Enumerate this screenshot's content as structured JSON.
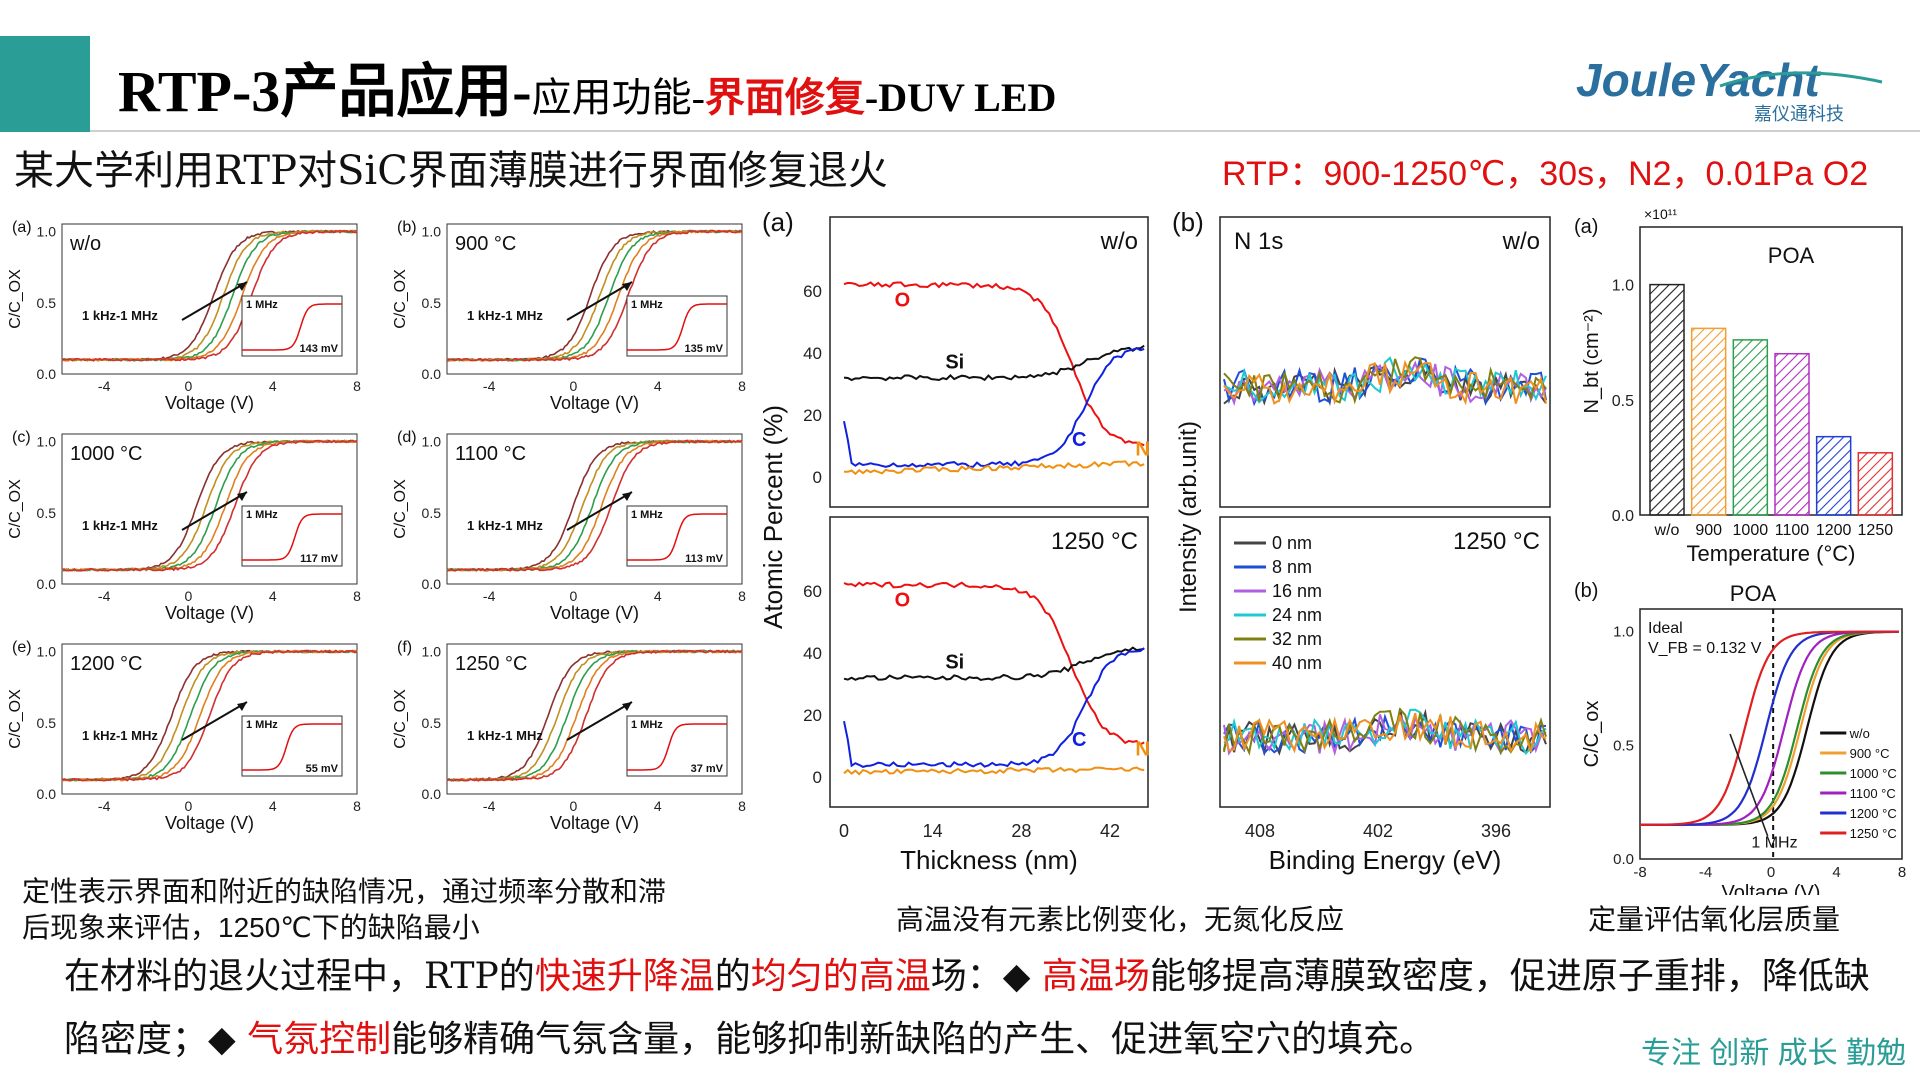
{
  "header": {
    "title_main": "RTP-3产品应用-",
    "title_sub": "应用功能-",
    "title_red": "界面修复",
    "title_tail": "-DUV LED",
    "logo_text": "JouleYacht",
    "logo_cn": "嘉仪通科技"
  },
  "subtitle": "某大学利用RTP对SiC界面薄膜进行界面修复退火",
  "rtp_condition": "RTP：900-1250℃，30s，N2，0.01Pa O2",
  "cv_panels": [
    {
      "letter": "(a)",
      "label": "w/o",
      "mv": "143 mV",
      "shift": 1.2
    },
    {
      "letter": "(b)",
      "label": "900 °C",
      "mv": "135 mV",
      "shift": 0.8
    },
    {
      "letter": "(c)",
      "label": "1000 °C",
      "mv": "117 mV",
      "shift": 0.4
    },
    {
      "letter": "(d)",
      "label": "1100 °C",
      "mv": "113 mV",
      "shift": 0.0
    },
    {
      "letter": "(e)",
      "label": "1200 °C",
      "mv": "55 mV",
      "shift": -0.8
    },
    {
      "letter": "(f)",
      "label": "1250 °C",
      "mv": "37 mV",
      "shift": -1.2
    }
  ],
  "cv_common": {
    "ylabel": "C/C_OX",
    "xlabel": "Voltage (V)",
    "freq": "1 kHz-1 MHz",
    "inset_freq": "1 MHz",
    "xticks": [
      "-4",
      "0",
      "4",
      "8"
    ],
    "yticks": [
      "0.0",
      "0.5",
      "1.0"
    ]
  },
  "caption_left_1": "定性表示界面和附近的缺陷情况，通过频率分散和滞",
  "caption_left_2": "后现象来评估，1250℃下的缺陷最小",
  "xps": {
    "panel_a": "(a)",
    "panel_b": "(b)",
    "ylabel_a": "Atomic Percent (%)",
    "xlabel_a": "Thickness (nm)",
    "ylabel_b": "Intensity (arb.unit)",
    "xlabel_b": "Binding Energy (eV)",
    "top_label": "w/o",
    "bottom_label": "1250 °C",
    "n1s": "N 1s",
    "elements": [
      "O",
      "Si",
      "C",
      "N"
    ],
    "thickness_ticks": [
      "0",
      "14",
      "28",
      "42"
    ],
    "percent_ticks": [
      "0",
      "20",
      "40",
      "60"
    ],
    "energy_ticks": [
      "408",
      "402",
      "396"
    ],
    "legend": [
      "0 nm",
      "8 nm",
      "16 nm",
      "24 nm",
      "32 nm",
      "40 nm"
    ],
    "legend_colors": [
      "#444444",
      "#1f4fd6",
      "#b060e0",
      "#20c8d0",
      "#808010",
      "#f09020"
    ]
  },
  "caption_mid": "高温没有元素比例变化，无氮化反应",
  "chart_data": [
    {
      "type": "bar",
      "title": "POA",
      "panel": "(a)",
      "exponent": "×10¹¹",
      "categories": [
        "w/o",
        "900",
        "1000",
        "1100",
        "1200",
        "1250"
      ],
      "values": [
        1.0,
        0.81,
        0.76,
        0.7,
        0.34,
        0.27
      ],
      "ylabel": "N_bt (cm⁻²)",
      "xlabel": "Temperature (°C)",
      "ylim": [
        0,
        1.25
      ],
      "yticks": [
        "0.0",
        "0.5",
        "1.0"
      ],
      "colors": [
        "#222222",
        "#f0a030",
        "#2e9e4e",
        "#b030c0",
        "#2040d0",
        "#e03030"
      ]
    },
    {
      "type": "line",
      "title": "POA",
      "panel": "(b)",
      "ideal_label": "Ideal",
      "vfb_label": "V_FB = 0.132 V",
      "freq_label": "1 MHz",
      "xlabel": "Voltage (V)",
      "ylabel": "C/C_ox",
      "xlim": [
        -8,
        8
      ],
      "ylim": [
        0,
        1.1
      ],
      "xticks": [
        "-8",
        "-4",
        "0",
        "4",
        "8"
      ],
      "yticks": [
        "0.0",
        "0.5",
        "1.0"
      ],
      "series": [
        {
          "name": "w/o",
          "midpoint": 2.2,
          "color": "#111111"
        },
        {
          "name": "900 °C",
          "midpoint": 1.8,
          "color": "#f0a030"
        },
        {
          "name": "1000 °C",
          "midpoint": 1.6,
          "color": "#2e8e2e"
        },
        {
          "name": "1100 °C",
          "midpoint": 0.8,
          "color": "#a020c0"
        },
        {
          "name": "1200 °C",
          "midpoint": -0.3,
          "color": "#2030d0"
        },
        {
          "name": "1250 °C",
          "midpoint": -1.6,
          "color": "#e02020"
        }
      ]
    }
  ],
  "caption_right": "定量评估氧化层质量",
  "para": {
    "p1": "在材料的退火过程中，RTP的",
    "p2": "快速升降温",
    "p3": "的",
    "p4": "均匀的高温",
    "p5": "场：◆ ",
    "p6": "高温场",
    "p7": "能够提高薄膜致密度，促进原子重排，降低缺陷密度；◆ ",
    "p8": "气氛控制",
    "p9": "能够精确气氛含量，能够抑制新缺陷的产生、促进氧空穴的填充。"
  },
  "motto": "专注 创新 成长 勤勉"
}
